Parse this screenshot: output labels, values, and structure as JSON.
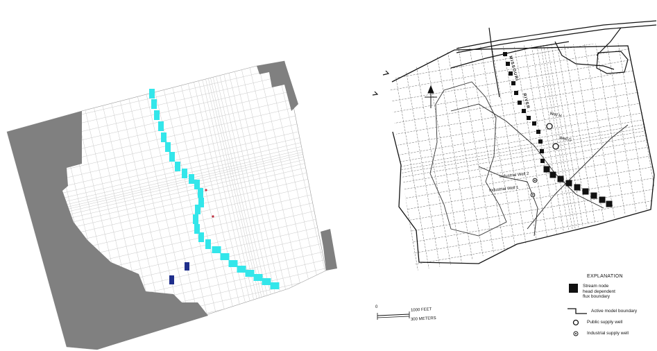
{
  "model_map": {
    "well_labels": [
      "Well H",
      "Well G",
      "Industrial Well 2",
      "Industrial Well 1"
    ],
    "river_labels": [
      "MISSOURI",
      "RIVER"
    ]
  },
  "legend": {
    "title": "EXPLANATION",
    "items": [
      {
        "symbol": "stream-node",
        "text": "Stream node\nhead dependent\nflux boundary"
      },
      {
        "symbol": "active-boundary",
        "text": "Active model boundary"
      },
      {
        "symbol": "public-well",
        "text": "Public supply well"
      },
      {
        "symbol": "industrial-well",
        "text": "Industrial supply well"
      }
    ]
  },
  "scale_bar": {
    "zero_label": "0",
    "feet_label": "1000 FEET",
    "meters_label": "300 METERS"
  },
  "colors": {
    "inactive_cells": "#808080",
    "stream_cells": "#33e6ea",
    "well_cells": "#1f2f8c",
    "grid_lines": "#c8c8c8",
    "pumping_points": "#c03040"
  }
}
